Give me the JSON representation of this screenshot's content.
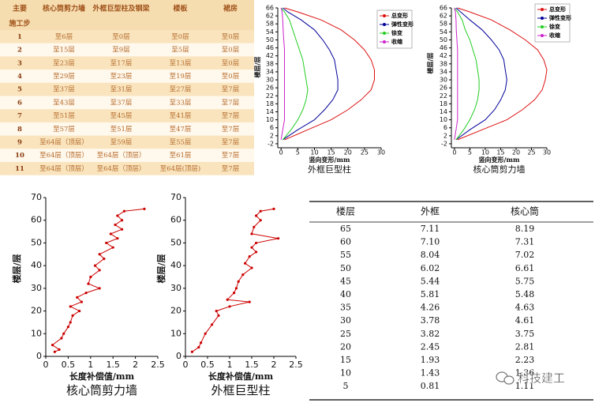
{
  "construction_table": {
    "corner_top": "主要",
    "corner_bottom": "施工步",
    "columns": [
      "核心筒剪力墙",
      "外框巨型柱及钢梁",
      "楼板",
      "裙房"
    ],
    "rows": [
      [
        "1",
        "至6层",
        "至0层",
        "至0层",
        "至0层"
      ],
      [
        "2",
        "至15层",
        "至9层",
        "至5层",
        "至0层"
      ],
      [
        "3",
        "至23层",
        "至17层",
        "至13层",
        "至0层"
      ],
      [
        "4",
        "至29层",
        "至23层",
        "至19层",
        "至0层"
      ],
      [
        "5",
        "至37层",
        "至31层",
        "至27层",
        "至7层"
      ],
      [
        "6",
        "至43层",
        "至37层",
        "至33层",
        "至7层"
      ],
      [
        "7",
        "至51层",
        "至45层",
        "至41层",
        "至7层"
      ],
      [
        "8",
        "至57层",
        "至51层",
        "至47层",
        "至7层"
      ],
      [
        "9",
        "至64层（顶层）",
        "至59层",
        "至55层",
        "至7层"
      ],
      [
        "10",
        "至64层（顶层）",
        "至64层（顶层）",
        "至61层",
        "至7层"
      ],
      [
        "11",
        "至64层（顶层）",
        "至64层（顶层）",
        "至64层(顶层)",
        "至7层"
      ]
    ]
  },
  "chart_data": [
    {
      "type": "line",
      "title": "外框巨型柱",
      "xlabel": "竖向变形/mm",
      "ylabel": "楼层/层",
      "xlim": [
        -1,
        30
      ],
      "xticks": [
        0,
        5,
        10,
        15,
        20,
        25,
        30
      ],
      "ylim": [
        -4,
        66
      ],
      "yticks": [
        -2,
        2,
        6,
        10,
        14,
        18,
        22,
        26,
        30,
        34,
        38,
        42,
        46,
        50,
        54,
        58,
        62,
        66
      ],
      "y": [
        0,
        5,
        10,
        15,
        20,
        25,
        30,
        35,
        40,
        45,
        50,
        55,
        60,
        64,
        66
      ],
      "series": [
        {
          "name": "总变形",
          "color": "#dd1111",
          "values": [
            1,
            8,
            15,
            20,
            24,
            27,
            28,
            28,
            27,
            25,
            22,
            18,
            12,
            5,
            1
          ]
        },
        {
          "name": "弹性变形",
          "color": "#000099",
          "values": [
            0.5,
            5,
            10,
            13,
            15.5,
            17,
            17,
            16.5,
            16,
            14.5,
            12.5,
            10,
            6,
            2,
            0.5
          ]
        },
        {
          "name": "徐变",
          "color": "#22cc22",
          "values": [
            0.5,
            3,
            5,
            6.5,
            7.5,
            8,
            7.5,
            7,
            6.5,
            5.5,
            4.5,
            3.5,
            2.5,
            1,
            0
          ]
        },
        {
          "name": "收缩",
          "color": "#cc22cc",
          "values": [
            0,
            0.5,
            1,
            1,
            1,
            1,
            1,
            1,
            1,
            1,
            0.8,
            0.6,
            0.5,
            0.3,
            0
          ]
        }
      ]
    },
    {
      "type": "line",
      "title": "核心筒剪力墙",
      "xlabel": "竖向变形/mm",
      "ylabel": "楼层/层",
      "xlim": [
        -1,
        30
      ],
      "xticks": [
        0,
        5,
        10,
        15,
        20,
        25,
        30
      ],
      "ylim": [
        -4,
        66
      ],
      "yticks": [
        -2,
        2,
        6,
        10,
        14,
        18,
        22,
        26,
        30,
        34,
        38,
        42,
        46,
        50,
        54,
        58,
        62,
        66
      ],
      "y": [
        0,
        5,
        10,
        15,
        20,
        25,
        30,
        35,
        40,
        45,
        50,
        55,
        60,
        64,
        66
      ],
      "series": [
        {
          "name": "总变形",
          "color": "#dd1111",
          "values": [
            1,
            9,
            17,
            22,
            26,
            28.5,
            29.5,
            30,
            29,
            27,
            23,
            18,
            12,
            5,
            1
          ]
        },
        {
          "name": "弹性变形",
          "color": "#000099",
          "values": [
            0.5,
            5,
            10,
            13,
            15,
            16.5,
            17,
            16.5,
            16,
            14.5,
            12,
            9,
            5,
            2,
            0.5
          ]
        },
        {
          "name": "徐变",
          "color": "#22cc22",
          "values": [
            0.5,
            3,
            5,
            6.5,
            7.5,
            8,
            8,
            7.5,
            7,
            6,
            5,
            3.5,
            2.5,
            1,
            0
          ]
        },
        {
          "name": "收缩",
          "color": "#cc22cc",
          "values": [
            0,
            0.5,
            1,
            1,
            1,
            1,
            1,
            1,
            1,
            1,
            0.8,
            0.6,
            0.5,
            0.3,
            0
          ]
        }
      ]
    },
    {
      "type": "line",
      "title": "核心筒剪力墙",
      "xlabel": "长度补偿值/mm",
      "ylabel": "楼层/层",
      "xlim": [
        0,
        2.5
      ],
      "xticks": [
        0,
        0.5,
        1,
        1.5,
        2,
        2.5
      ],
      "ylim": [
        0,
        70
      ],
      "yticks": [
        0,
        10,
        20,
        30,
        40,
        50,
        60,
        70
      ],
      "color": "#cc0000",
      "y": [
        2,
        3,
        5,
        8,
        10,
        13,
        15,
        18,
        20,
        22,
        24,
        26,
        28,
        30,
        32,
        35,
        38,
        40,
        43,
        45,
        48,
        50,
        52,
        54,
        56,
        58,
        60,
        62,
        64,
        65
      ],
      "values": [
        0.2,
        0.3,
        0.15,
        0.35,
        0.4,
        0.5,
        0.55,
        0.6,
        0.75,
        0.55,
        0.8,
        0.7,
        0.9,
        1.2,
        0.95,
        1.0,
        1.2,
        1.1,
        1.3,
        1.2,
        1.5,
        1.35,
        1.6,
        1.45,
        1.7,
        1.55,
        1.7,
        1.6,
        1.75,
        2.2
      ]
    },
    {
      "type": "line",
      "title": "外框巨型柱",
      "xlabel": "长度补偿值/mm",
      "ylabel": "楼层/层",
      "xlim": [
        0,
        2.5
      ],
      "xticks": [
        0,
        0.5,
        1,
        1.5,
        2,
        2.5
      ],
      "ylim": [
        0,
        70
      ],
      "yticks": [
        0,
        10,
        20,
        30,
        40,
        50,
        60,
        70
      ],
      "color": "#cc0000",
      "y": [
        2,
        4,
        6,
        10,
        14,
        18,
        20,
        22,
        24,
        25,
        28,
        30,
        33,
        36,
        39,
        41,
        44,
        46,
        48,
        50,
        52,
        54,
        57,
        60,
        62,
        64,
        65
      ],
      "values": [
        0.15,
        0.3,
        0.35,
        0.45,
        0.6,
        0.75,
        0.7,
        1.0,
        1.45,
        0.95,
        1.1,
        1.15,
        1.2,
        1.3,
        1.5,
        1.35,
        1.45,
        1.6,
        1.5,
        1.6,
        2.1,
        1.5,
        1.55,
        1.7,
        1.6,
        1.7,
        2.0
      ]
    }
  ],
  "compensation_table": {
    "columns": [
      "楼层",
      "外框",
      "核心筒"
    ],
    "rows": [
      [
        "65",
        "7.11",
        "8.19"
      ],
      [
        "60",
        "7.10",
        "7.31"
      ],
      [
        "55",
        "8.04",
        "7.02"
      ],
      [
        "50",
        "6.02",
        "6.61"
      ],
      [
        "45",
        "5.44",
        "5.75"
      ],
      [
        "40",
        "5.81",
        "5.48"
      ],
      [
        "35",
        "4.26",
        "4.63"
      ],
      [
        "30",
        "3.78",
        "4.61"
      ],
      [
        "25",
        "3.82",
        "3.75"
      ],
      [
        "20",
        "2.45",
        "2.81"
      ],
      [
        "15",
        "1.93",
        "2.23"
      ],
      [
        "10",
        "1.43",
        "1.36"
      ],
      [
        "5",
        "0.81",
        "1.11"
      ]
    ]
  },
  "watermark": "科技建工"
}
